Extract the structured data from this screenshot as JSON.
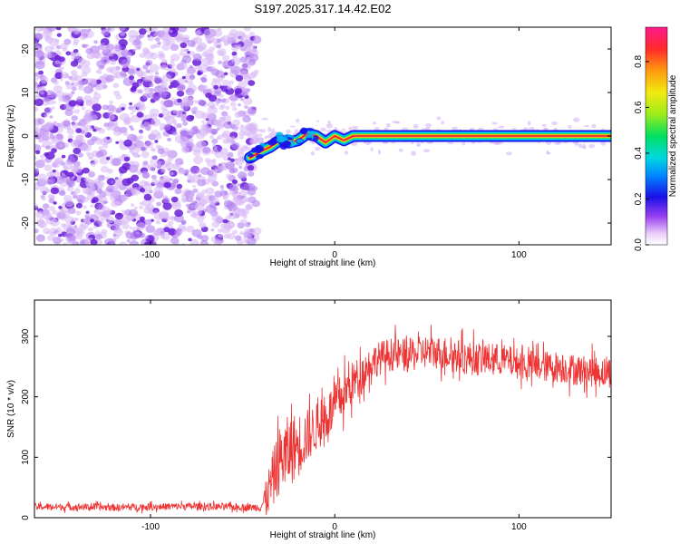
{
  "figure_title": "S197.2025.317.14.42.E02",
  "colors": {
    "snr_line": "#ee3333",
    "scatter_dark": "#6a1fd8",
    "scatter_light": "#d7b6f5",
    "band_red": "#e8293a",
    "background": "#ffffff"
  },
  "chart_data": [
    {
      "type": "heatmap",
      "title": "S197.2025.317.14.42.E02",
      "xlabel": "Height of straight line (km)",
      "ylabel": "Frequency (Hz)",
      "xlim": [
        -163,
        150
      ],
      "ylim": [
        -25,
        25
      ],
      "xticks": [
        -100,
        0,
        100
      ],
      "xtick_labels": [
        "-100",
        "0",
        "100"
      ],
      "yticks": [
        -20,
        -10,
        0,
        10,
        20
      ],
      "ytick_labels": [
        "-20",
        "-10",
        "0",
        "10",
        "20"
      ],
      "noise_region_x": [
        -163,
        -46
      ],
      "signal_onset_x": -46,
      "ridge": {
        "x": [
          -46,
          -40,
          -35,
          -30,
          -25,
          -20,
          -15,
          -10,
          -5,
          0,
          5,
          10,
          20,
          40,
          80,
          120,
          150
        ],
        "y": [
          -5,
          -3.5,
          -2.5,
          -1,
          -1.5,
          -1,
          0.5,
          0,
          -1.5,
          0,
          -1,
          0,
          0,
          0,
          0,
          0,
          0
        ]
      },
      "colorbar": {
        "label": "Normalized spectral amplitude",
        "range": [
          0.0,
          0.95
        ],
        "ticks": [
          0.0,
          0.2,
          0.4,
          0.6,
          0.8
        ],
        "tick_labels": [
          "0.0",
          "0.2",
          "0.4",
          "0.6",
          "0.8"
        ]
      }
    },
    {
      "type": "line",
      "xlabel": "Height of straight line (km)",
      "ylabel": "SNR (10 * v/v)",
      "xlim": [
        -163,
        150
      ],
      "ylim": [
        0,
        360
      ],
      "xticks": [
        -100,
        0,
        100
      ],
      "xtick_labels": [
        "-100",
        "0",
        "100"
      ],
      "yticks": [
        0,
        100,
        200,
        300
      ],
      "ytick_labels": [
        "0",
        "100",
        "200",
        "300"
      ],
      "series": [
        {
          "name": "SNR",
          "x": [
            -163,
            -140,
            -120,
            -100,
            -80,
            -60,
            -45,
            -40,
            -35,
            -30,
            -25,
            -20,
            -15,
            -10,
            -5,
            0,
            5,
            10,
            15,
            20,
            25,
            30,
            40,
            50,
            60,
            70,
            80,
            90,
            100,
            110,
            120,
            130,
            140,
            150
          ],
          "y": [
            18,
            18,
            17,
            18,
            19,
            18,
            17,
            18,
            50,
            95,
            110,
            120,
            135,
            150,
            165,
            185,
            205,
            225,
            240,
            258,
            265,
            270,
            268,
            275,
            272,
            265,
            262,
            262,
            255,
            250,
            250,
            245,
            242,
            240
          ],
          "noise_amplitude": [
            6,
            6,
            6,
            6,
            6,
            6,
            6,
            8,
            45,
            55,
            60,
            55,
            45,
            40,
            40,
            40,
            38,
            35,
            30,
            28,
            28,
            28,
            28,
            28,
            28,
            28,
            28,
            26,
            26,
            26,
            26,
            26,
            26,
            26
          ]
        }
      ]
    }
  ]
}
